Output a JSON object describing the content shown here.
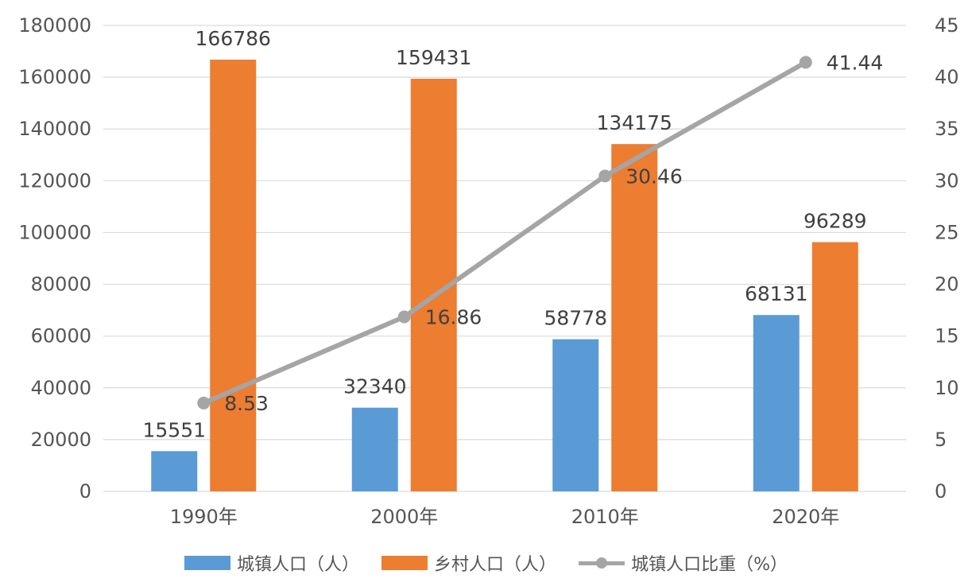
{
  "chart_data": {
    "type": "bar",
    "categories": [
      "1990年",
      "2000年",
      "2010年",
      "2020年"
    ],
    "series": [
      {
        "name": "城镇人口（人）",
        "type": "bar",
        "axis": "left",
        "color": "#5B9BD5",
        "values": [
          15551,
          32340,
          58778,
          68131
        ]
      },
      {
        "name": "乡村人口（人）",
        "type": "bar",
        "axis": "left",
        "color": "#ED7D31",
        "values": [
          166786,
          159431,
          134175,
          96289
        ]
      },
      {
        "name": "城镇人口比重（%）",
        "type": "line",
        "axis": "right",
        "color": "#A5A5A5",
        "values": [
          8.53,
          16.86,
          30.46,
          41.44
        ]
      }
    ],
    "y_left": {
      "min": 0,
      "max": 180000,
      "step": 20000,
      "ticks": [
        "0",
        "20000",
        "40000",
        "60000",
        "80000",
        "100000",
        "120000",
        "140000",
        "160000",
        "180000"
      ]
    },
    "y_right": {
      "min": 0,
      "max": 45,
      "step": 5,
      "ticks": [
        "0",
        "5",
        "10",
        "15",
        "20",
        "25",
        "30",
        "35",
        "40",
        "45"
      ]
    },
    "grid": true,
    "legend_position": "bottom",
    "gridline_color": "#D9D9D9"
  },
  "legend": {
    "urban_label": "城镇人口（人）",
    "rural_label": "乡村人口（人）",
    "ratio_label": "城镇人口比重（%）"
  }
}
